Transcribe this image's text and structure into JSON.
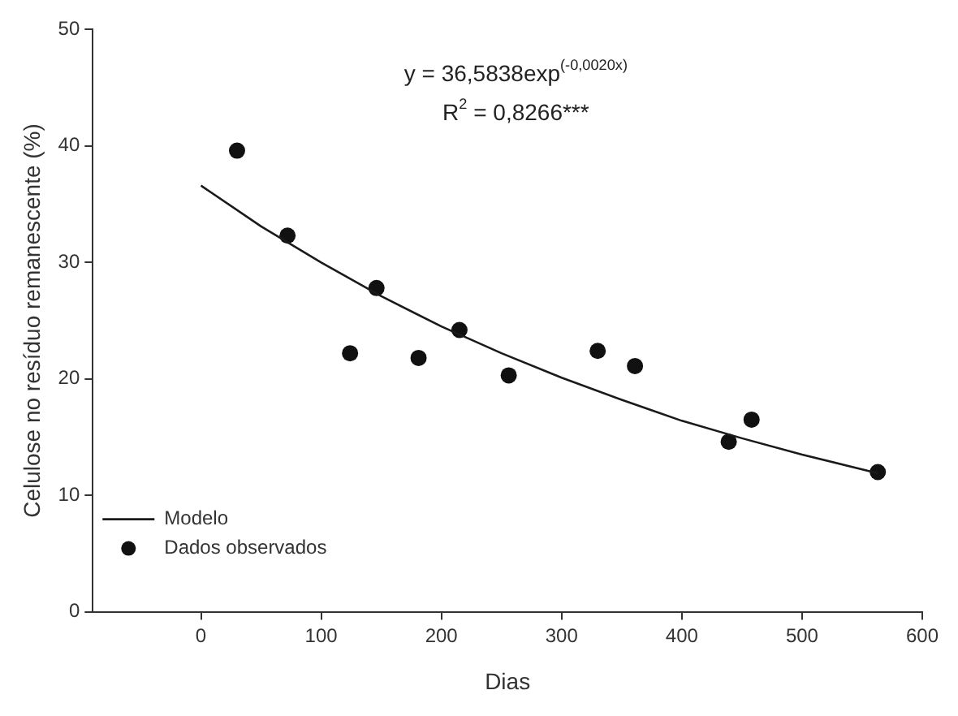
{
  "chart_data": {
    "type": "scatter",
    "xlabel": "Dias",
    "ylabel": "Celulose no resíduo remanescente (%)",
    "xlim": [
      -90,
      600
    ],
    "xticks": [
      0,
      100,
      200,
      300,
      400,
      500,
      600
    ],
    "ylim": [
      0,
      50
    ],
    "yticks": [
      0,
      10,
      20,
      30,
      40,
      50
    ],
    "grid": false,
    "legend": "bottom left",
    "marker": "circle",
    "annotations": [
      "y = 36,5838exp$^{(-0,0020x)}$",
      "R$^{2}$ = 0,8266***"
    ],
    "series": [
      {
        "name": "Modelo",
        "type": "line",
        "color": "#1a1a1a",
        "marker": "none",
        "line_style": "solid",
        "x": [
          0,
          50,
          100,
          150,
          200,
          250,
          300,
          350,
          400,
          450,
          500,
          563
        ],
        "values": [
          36.6,
          33.1,
          30.0,
          27.1,
          24.5,
          22.2,
          20.1,
          18.2,
          16.4,
          14.9,
          13.5,
          11.9
        ]
      },
      {
        "name": "Dados observados",
        "color": "#111111",
        "x": [
          30,
          72,
          124,
          146,
          181,
          215,
          256,
          330,
          361,
          439,
          458,
          563
        ],
        "values": [
          39.6,
          32.3,
          22.2,
          27.8,
          21.8,
          24.2,
          20.3,
          22.4,
          21.1,
          14.6,
          16.5,
          12.0
        ]
      }
    ]
  }
}
